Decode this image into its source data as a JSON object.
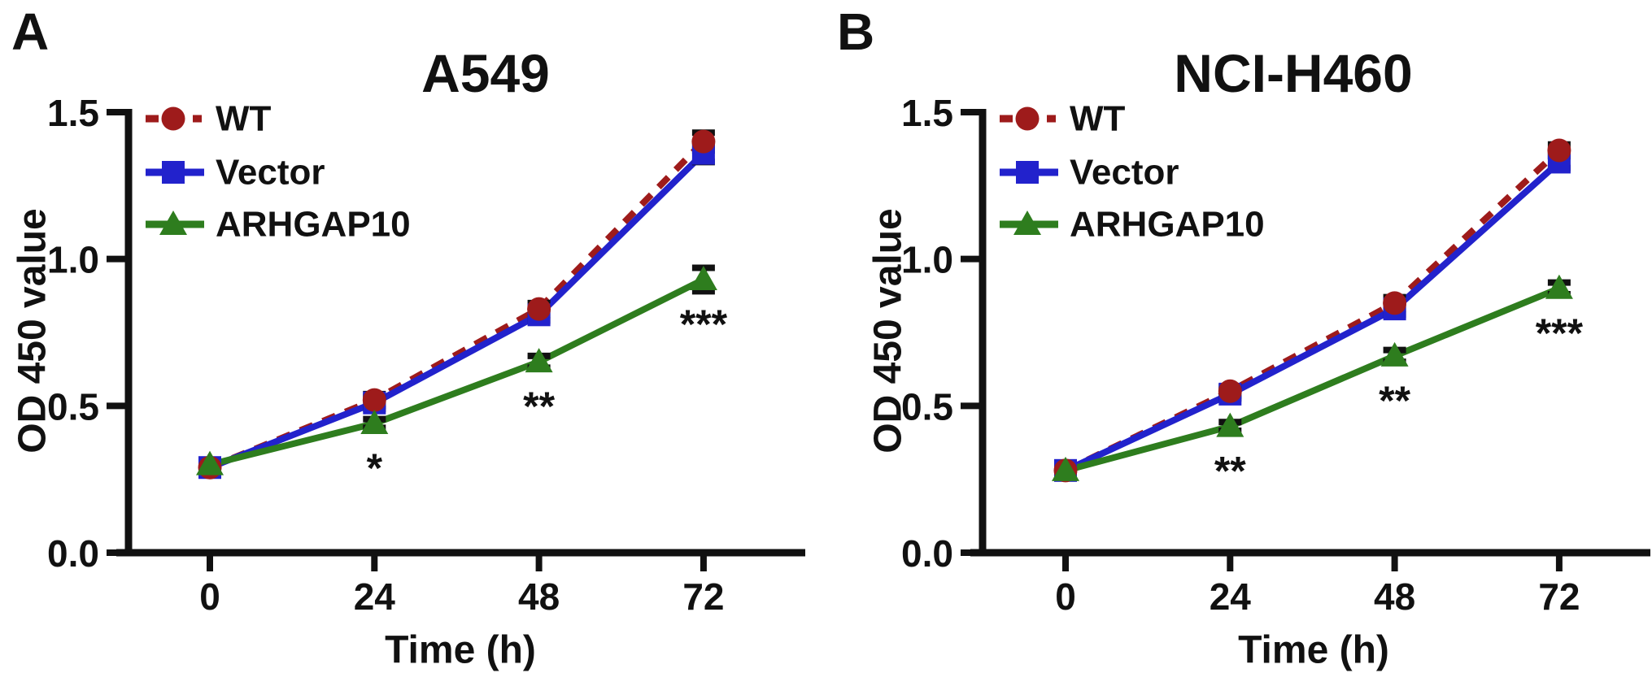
{
  "figure": {
    "background": "#ffffff",
    "text_color": "#111111",
    "axis_color": "#111111"
  },
  "chart_data": [
    {
      "panel_letter": "A",
      "type": "line",
      "title": "A549",
      "xlabel": "Time (h)",
      "ylabel": "OD 450 value",
      "x": [
        0,
        24,
        48,
        72
      ],
      "xtick_labels": [
        "0",
        "24",
        "48",
        "72"
      ],
      "yticks": [
        0,
        0.5,
        1.0,
        1.5
      ],
      "ytick_labels": [
        "0.0",
        "0.5",
        "1.0",
        "1.5"
      ],
      "ylim": [
        0,
        1.5
      ],
      "grid": false,
      "legend_position": "top-left",
      "series": [
        {
          "name": "WT",
          "color": "#9E1B1B",
          "line_style": "dashed",
          "marker": "circle",
          "values": [
            0.29,
            0.52,
            0.83,
            1.4
          ],
          "errors": [
            0.01,
            0.02,
            0.02,
            0.03
          ]
        },
        {
          "name": "Vector",
          "color": "#2222CC",
          "line_style": "solid",
          "marker": "square",
          "values": [
            0.29,
            0.51,
            0.81,
            1.36
          ],
          "errors": [
            0.01,
            0.02,
            0.02,
            0.03
          ]
        },
        {
          "name": "ARHGAP10",
          "color": "#2E7D1E",
          "line_style": "solid",
          "marker": "triangle",
          "values": [
            0.3,
            0.44,
            0.65,
            0.93
          ],
          "errors": [
            0.01,
            0.015,
            0.02,
            0.04
          ]
        }
      ],
      "significance": [
        {
          "time": 24,
          "label": "*"
        },
        {
          "time": 48,
          "label": "**"
        },
        {
          "time": 72,
          "label": "***"
        }
      ]
    },
    {
      "panel_letter": "B",
      "type": "line",
      "title": "NCI-H460",
      "xlabel": "Time (h)",
      "ylabel": "OD 450 value",
      "x": [
        0,
        24,
        48,
        72
      ],
      "xtick_labels": [
        "0",
        "24",
        "48",
        "72"
      ],
      "yticks": [
        0,
        0.5,
        1.0,
        1.5
      ],
      "ytick_labels": [
        "0.0",
        "0.5",
        "1.0",
        "1.5"
      ],
      "ylim": [
        0,
        1.5
      ],
      "grid": false,
      "legend_position": "top-left",
      "series": [
        {
          "name": "WT",
          "color": "#9E1B1B",
          "line_style": "dashed",
          "marker": "circle",
          "values": [
            0.28,
            0.55,
            0.85,
            1.37
          ],
          "errors": [
            0.01,
            0.015,
            0.02,
            0.02
          ]
        },
        {
          "name": "Vector",
          "color": "#2222CC",
          "line_style": "solid",
          "marker": "square",
          "values": [
            0.28,
            0.54,
            0.83,
            1.33
          ],
          "errors": [
            0.01,
            0.015,
            0.02,
            0.02
          ]
        },
        {
          "name": "ARHGAP10",
          "color": "#2E7D1E",
          "line_style": "solid",
          "marker": "triangle",
          "values": [
            0.28,
            0.43,
            0.67,
            0.9
          ],
          "errors": [
            0.01,
            0.015,
            0.02,
            0.02
          ]
        }
      ],
      "significance": [
        {
          "time": 24,
          "label": "**"
        },
        {
          "time": 48,
          "label": "**"
        },
        {
          "time": 72,
          "label": "***"
        }
      ]
    }
  ]
}
